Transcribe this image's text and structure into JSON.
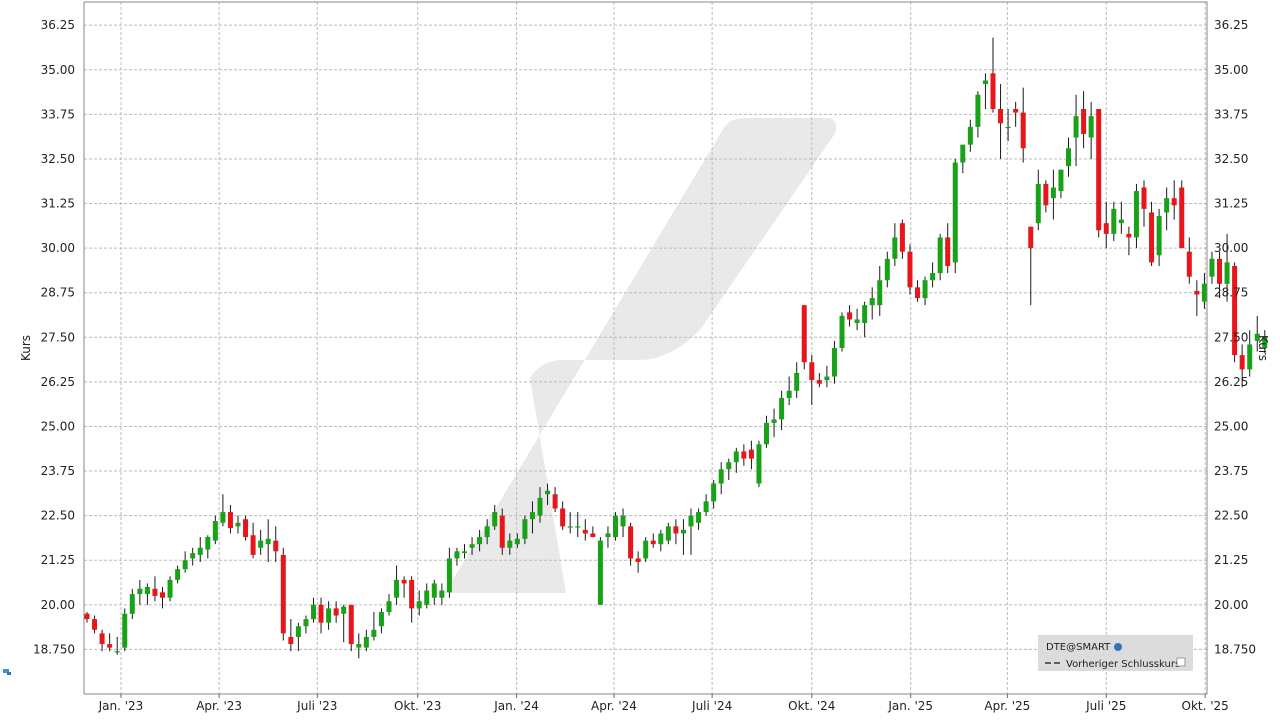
{
  "chart_data": {
    "type": "candlestick",
    "ylabel_left": "Kurs",
    "ylabel_right": "Kurs",
    "ylim": [
      17.5,
      36.9
    ],
    "y_ticks": [
      18.75,
      20.0,
      21.25,
      22.5,
      23.75,
      25.0,
      26.25,
      27.5,
      28.75,
      30.0,
      31.25,
      32.5,
      33.75,
      35.0,
      36.25
    ],
    "y_tick_labels": [
      "18.750",
      "20.00",
      "21.25",
      "22.50",
      "23.75",
      "25.00",
      "26.25",
      "27.50",
      "28.75",
      "30.00",
      "31.25",
      "32.50",
      "33.75",
      "35.00",
      "36.25"
    ],
    "x_ticks": [
      {
        "label": "Jan. '23",
        "week": 4.5
      },
      {
        "label": "Apr. '23",
        "week": 17.5
      },
      {
        "label": "Juli '23",
        "week": 30.5
      },
      {
        "label": "Okt. '23",
        "week": 43.8
      },
      {
        "label": "Jan. '24",
        "week": 56.9
      },
      {
        "label": "Apr. '24",
        "week": 69.8
      },
      {
        "label": "Juli '24",
        "week": 82.8
      },
      {
        "label": "Okt. '24",
        "week": 96.0
      },
      {
        "label": "Jan. '25",
        "week": 109.1
      },
      {
        "label": "Apr. '25",
        "week": 121.9
      },
      {
        "label": "Juli '25",
        "week": 135.0
      },
      {
        "label": "Okt. '25",
        "week": 148.1
      }
    ],
    "grid": true,
    "legend_position": "bottom-right",
    "legend": {
      "symbol": "DTE@SMART",
      "entries": [
        "Vorheriger Schlusskurs"
      ]
    },
    "colors": {
      "up": "#18a218",
      "down": "#e8151b",
      "grid": "#bbbbbb",
      "watermark": "#e9e9e9"
    },
    "series_note": "weekly OHLC candles",
    "ohlc": [
      [
        19.75,
        19.8,
        19.5,
        19.6
      ],
      [
        19.6,
        19.7,
        19.2,
        19.3
      ],
      [
        19.2,
        19.3,
        18.7,
        18.9
      ],
      [
        18.9,
        19.2,
        18.7,
        18.8
      ],
      [
        18.7,
        19.1,
        18.6,
        18.7
      ],
      [
        18.8,
        19.9,
        18.7,
        19.75
      ],
      [
        19.75,
        20.45,
        19.6,
        20.3
      ],
      [
        20.3,
        20.7,
        20.0,
        20.45
      ],
      [
        20.3,
        20.6,
        20.0,
        20.5
      ],
      [
        20.45,
        20.8,
        20.1,
        20.25
      ],
      [
        20.35,
        20.5,
        19.9,
        20.2
      ],
      [
        20.2,
        20.8,
        20.1,
        20.7
      ],
      [
        20.7,
        21.1,
        20.6,
        21.0
      ],
      [
        21.0,
        21.5,
        20.9,
        21.25
      ],
      [
        21.3,
        21.6,
        21.1,
        21.45
      ],
      [
        21.4,
        21.9,
        21.2,
        21.6
      ],
      [
        21.55,
        21.95,
        21.3,
        21.9
      ],
      [
        21.8,
        22.5,
        21.7,
        22.35
      ],
      [
        22.3,
        23.1,
        22.2,
        22.6
      ],
      [
        22.6,
        22.8,
        22.0,
        22.15
      ],
      [
        22.2,
        22.5,
        22.0,
        22.3
      ],
      [
        22.4,
        22.5,
        21.8,
        21.9
      ],
      [
        21.95,
        22.3,
        21.3,
        21.4
      ],
      [
        21.6,
        22.1,
        21.4,
        21.8
      ],
      [
        21.7,
        22.4,
        21.2,
        21.85
      ],
      [
        21.8,
        22.2,
        21.2,
        21.5
      ],
      [
        21.4,
        21.6,
        19.0,
        19.2
      ],
      [
        19.1,
        19.6,
        18.7,
        18.9
      ],
      [
        19.1,
        19.5,
        18.7,
        19.4
      ],
      [
        19.4,
        19.7,
        19.2,
        19.6
      ],
      [
        19.6,
        20.2,
        19.5,
        20.0
      ],
      [
        20.0,
        20.2,
        19.2,
        19.5
      ],
      [
        19.5,
        20.1,
        19.3,
        19.9
      ],
      [
        19.9,
        20.1,
        19.5,
        19.7
      ],
      [
        19.75,
        20.0,
        18.95,
        19.95
      ],
      [
        20.0,
        20.0,
        18.7,
        18.9
      ],
      [
        18.8,
        19.2,
        18.5,
        18.9
      ],
      [
        18.8,
        19.3,
        18.7,
        19.1
      ],
      [
        19.1,
        19.8,
        19.0,
        19.3
      ],
      [
        19.4,
        19.9,
        19.2,
        19.8
      ],
      [
        19.8,
        20.3,
        19.7,
        20.1
      ],
      [
        20.2,
        21.1,
        20.0,
        20.7
      ],
      [
        20.7,
        20.8,
        20.2,
        20.6
      ],
      [
        20.7,
        20.8,
        19.5,
        19.9
      ],
      [
        19.9,
        20.4,
        19.7,
        20.1
      ],
      [
        20.0,
        20.6,
        19.9,
        20.4
      ],
      [
        20.2,
        20.7,
        20.0,
        20.6
      ],
      [
        20.2,
        20.6,
        20.0,
        20.4
      ],
      [
        20.35,
        21.6,
        20.2,
        21.3
      ],
      [
        21.3,
        21.6,
        21.1,
        21.5
      ],
      [
        21.45,
        21.7,
        21.3,
        21.5
      ],
      [
        21.6,
        21.9,
        21.4,
        21.7
      ],
      [
        21.7,
        22.1,
        21.5,
        21.9
      ],
      [
        21.9,
        22.4,
        21.7,
        22.2
      ],
      [
        22.2,
        22.8,
        22.1,
        22.6
      ],
      [
        22.5,
        22.7,
        21.4,
        21.6
      ],
      [
        21.6,
        22.0,
        21.4,
        21.8
      ],
      [
        21.7,
        22.0,
        21.6,
        21.85
      ],
      [
        21.85,
        22.5,
        21.7,
        22.4
      ],
      [
        22.4,
        22.9,
        22.0,
        22.6
      ],
      [
        22.5,
        23.3,
        22.3,
        23.0
      ],
      [
        23.1,
        23.4,
        22.8,
        23.2
      ],
      [
        23.1,
        23.3,
        22.6,
        22.7
      ],
      [
        22.7,
        22.9,
        22.1,
        22.2
      ],
      [
        22.2,
        22.6,
        22.0,
        22.2
      ],
      [
        22.2,
        22.6,
        21.9,
        22.2
      ],
      [
        22.1,
        22.4,
        21.8,
        22.0
      ],
      [
        22.0,
        22.2,
        21.9,
        21.9
      ],
      [
        20.0,
        21.9,
        20.0,
        21.8
      ],
      [
        21.9,
        22.2,
        21.6,
        22.0
      ],
      [
        21.9,
        22.6,
        21.8,
        22.5
      ],
      [
        22.2,
        22.7,
        21.9,
        22.5
      ],
      [
        22.2,
        22.3,
        21.1,
        21.3
      ],
      [
        21.3,
        21.5,
        20.9,
        21.2
      ],
      [
        21.3,
        21.9,
        21.2,
        21.8
      ],
      [
        21.8,
        22.0,
        21.6,
        21.7
      ],
      [
        21.7,
        22.1,
        21.5,
        22.0
      ],
      [
        21.8,
        22.3,
        21.7,
        22.2
      ],
      [
        22.2,
        22.4,
        21.7,
        22.0
      ],
      [
        22.0,
        22.4,
        21.4,
        22.1
      ],
      [
        22.2,
        22.7,
        21.4,
        22.5
      ],
      [
        22.3,
        22.7,
        22.1,
        22.6
      ],
      [
        22.6,
        23.1,
        22.5,
        22.9
      ],
      [
        22.9,
        23.5,
        22.7,
        23.4
      ],
      [
        23.4,
        24.0,
        23.1,
        23.8
      ],
      [
        23.8,
        24.1,
        23.5,
        24.0
      ],
      [
        24.0,
        24.4,
        23.7,
        24.3
      ],
      [
        24.3,
        24.5,
        23.9,
        24.1
      ],
      [
        24.35,
        24.6,
        23.8,
        24.1
      ],
      [
        23.4,
        24.6,
        23.3,
        24.5
      ],
      [
        24.5,
        25.3,
        24.4,
        25.1
      ],
      [
        25.1,
        25.5,
        24.7,
        25.2
      ],
      [
        25.2,
        26.0,
        24.9,
        25.8
      ],
      [
        25.8,
        26.4,
        25.6,
        26.0
      ],
      [
        26.0,
        26.8,
        25.8,
        26.5
      ],
      [
        28.4,
        28.4,
        26.6,
        26.8
      ],
      [
        26.8,
        27.0,
        25.6,
        26.3
      ],
      [
        26.3,
        26.5,
        26.1,
        26.2
      ],
      [
        26.3,
        26.7,
        26.1,
        26.4
      ],
      [
        26.4,
        27.4,
        26.2,
        27.2
      ],
      [
        27.2,
        28.2,
        27.1,
        28.1
      ],
      [
        28.2,
        28.4,
        27.8,
        28.0
      ],
      [
        27.9,
        28.3,
        27.7,
        28.0
      ],
      [
        27.9,
        28.5,
        27.5,
        28.4
      ],
      [
        28.4,
        28.9,
        28.0,
        28.6
      ],
      [
        28.4,
        29.5,
        28.1,
        29.1
      ],
      [
        29.1,
        29.9,
        28.9,
        29.7
      ],
      [
        29.7,
        30.7,
        29.5,
        30.3
      ],
      [
        30.7,
        30.8,
        29.7,
        29.9
      ],
      [
        29.9,
        30.1,
        28.7,
        28.9
      ],
      [
        28.9,
        29.1,
        28.5,
        28.6
      ],
      [
        28.6,
        29.2,
        28.4,
        29.1
      ],
      [
        29.1,
        29.6,
        28.9,
        29.3
      ],
      [
        29.3,
        30.4,
        29.1,
        30.3
      ],
      [
        30.3,
        30.7,
        29.3,
        29.5
      ],
      [
        29.6,
        32.5,
        29.3,
        32.4
      ],
      [
        32.4,
        32.9,
        32.1,
        32.9
      ],
      [
        32.9,
        33.6,
        32.7,
        33.4
      ],
      [
        33.4,
        34.4,
        33.1,
        34.3
      ],
      [
        34.6,
        34.9,
        33.9,
        34.7
      ],
      [
        34.9,
        35.9,
        33.8,
        33.9
      ],
      [
        33.9,
        34.6,
        32.5,
        33.5
      ],
      [
        33.4,
        33.9,
        33.0,
        33.4
      ],
      [
        33.9,
        34.1,
        33.4,
        33.8
      ],
      [
        33.8,
        34.5,
        32.4,
        32.8
      ],
      [
        30.6,
        30.6,
        28.4,
        30.0
      ],
      [
        30.7,
        32.2,
        30.5,
        31.8
      ],
      [
        31.8,
        31.9,
        31.0,
        31.2
      ],
      [
        31.4,
        32.2,
        30.8,
        31.7
      ],
      [
        31.6,
        32.2,
        31.4,
        32.2
      ],
      [
        32.3,
        33.1,
        32.0,
        32.8
      ],
      [
        33.1,
        34.3,
        32.3,
        33.7
      ],
      [
        33.9,
        34.4,
        32.8,
        33.2
      ],
      [
        33.1,
        34.1,
        32.5,
        33.7
      ],
      [
        33.9,
        33.9,
        30.3,
        30.5
      ],
      [
        30.7,
        31.3,
        30.0,
        30.4
      ],
      [
        30.4,
        31.3,
        30.2,
        31.1
      ],
      [
        30.7,
        31.3,
        30.4,
        30.8
      ],
      [
        30.4,
        30.6,
        29.8,
        30.3
      ],
      [
        30.3,
        31.8,
        30.0,
        31.6
      ],
      [
        31.7,
        31.9,
        30.6,
        31.1
      ],
      [
        31.0,
        31.3,
        29.5,
        29.6
      ],
      [
        29.8,
        31.1,
        29.5,
        30.9
      ],
      [
        31.0,
        31.7,
        30.5,
        31.4
      ],
      [
        31.4,
        31.9,
        30.8,
        31.2
      ],
      [
        31.7,
        31.9,
        30.0,
        30.0
      ],
      [
        29.9,
        30.3,
        29.0,
        29.2
      ],
      [
        28.8,
        29.1,
        28.1,
        28.7
      ],
      [
        28.5,
        29.3,
        28.3,
        29.0
      ],
      [
        29.2,
        29.9,
        29.0,
        29.7
      ],
      [
        29.7,
        29.9,
        28.6,
        29.0
      ],
      [
        29.0,
        30.4,
        28.5,
        29.6
      ],
      [
        29.5,
        29.6,
        26.8,
        27.0
      ],
      [
        27.0,
        27.3,
        26.1,
        26.6
      ],
      [
        26.6,
        27.7,
        26.4,
        27.3
      ],
      [
        27.4,
        28.1,
        27.1,
        27.6
      ],
      [
        27.2,
        27.7,
        27.1,
        27.5
      ]
    ]
  }
}
